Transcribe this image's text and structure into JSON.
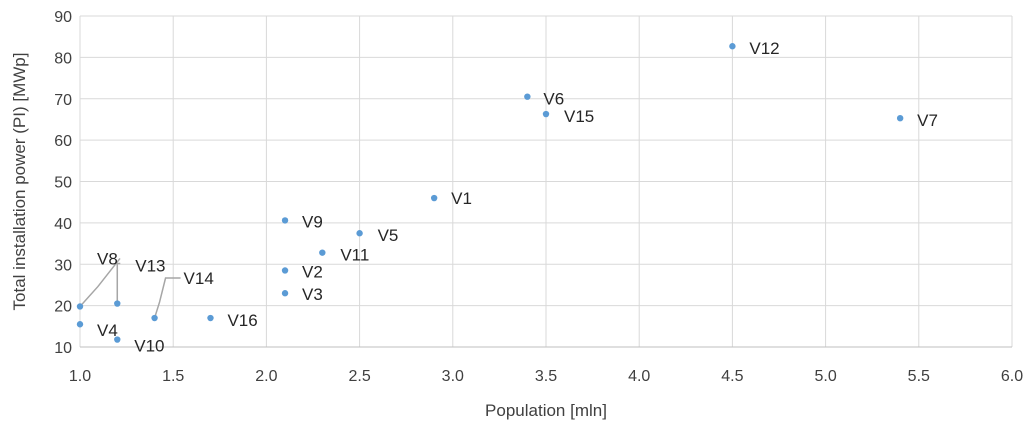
{
  "chart_data": {
    "type": "scatter",
    "xlabel": "Population [mln]",
    "ylabel": "Total installation power (PI) [MWp]",
    "xlim": [
      1.0,
      6.0
    ],
    "ylim": [
      10,
      90
    ],
    "x_ticks": [
      "1.0",
      "1.5",
      "2.0",
      "2.5",
      "3.0",
      "3.5",
      "4.0",
      "4.5",
      "5.0",
      "5.5",
      "6.0"
    ],
    "y_ticks": [
      "10",
      "20",
      "30",
      "40",
      "50",
      "60",
      "70",
      "80",
      "90"
    ],
    "grid": true,
    "legend": "none",
    "point_color": "#5b9bd5",
    "points": [
      {
        "label": "V1",
        "x": 2.9,
        "y": 46.0
      },
      {
        "label": "V2",
        "x": 2.1,
        "y": 28.5
      },
      {
        "label": "V3",
        "x": 2.1,
        "y": 23.0
      },
      {
        "label": "V4",
        "x": 1.0,
        "y": 15.5
      },
      {
        "label": "V5",
        "x": 2.5,
        "y": 37.5
      },
      {
        "label": "V6",
        "x": 3.4,
        "y": 70.5
      },
      {
        "label": "V7",
        "x": 5.4,
        "y": 65.3
      },
      {
        "label": "V8",
        "x": 1.0,
        "y": 19.8
      },
      {
        "label": "V9",
        "x": 2.1,
        "y": 40.6
      },
      {
        "label": "V10",
        "x": 1.2,
        "y": 11.8
      },
      {
        "label": "V11",
        "x": 2.3,
        "y": 32.8
      },
      {
        "label": "V12",
        "x": 4.5,
        "y": 82.7
      },
      {
        "label": "V13",
        "x": 1.2,
        "y": 20.5
      },
      {
        "label": "V14",
        "x": 1.4,
        "y": 17.0
      },
      {
        "label": "V15",
        "x": 3.5,
        "y": 66.3
      },
      {
        "label": "V16",
        "x": 1.7,
        "y": 17.0
      }
    ]
  }
}
